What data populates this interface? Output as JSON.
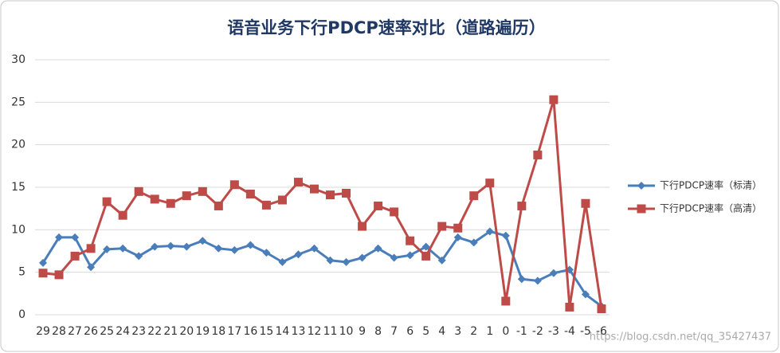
{
  "chart_data": {
    "type": "line",
    "title": "语音业务下行PDCP速率对比（道路遍历）",
    "categories": [
      "29",
      "28",
      "27",
      "26",
      "25",
      "24",
      "23",
      "22",
      "21",
      "20",
      "19",
      "18",
      "17",
      "16",
      "15",
      "14",
      "13",
      "12",
      "11",
      "10",
      "9",
      "8",
      "7",
      "6",
      "5",
      "4",
      "3",
      "2",
      "1",
      "0",
      "-1",
      "-2",
      "-3",
      "-4",
      "-5",
      "-6"
    ],
    "series": [
      {
        "name": "下行PDCP速率（标清）",
        "color": "#4a7ebb",
        "marker": "diamond",
        "values": [
          6.1,
          9.1,
          9.1,
          5.6,
          7.7,
          7.8,
          6.9,
          8.0,
          8.1,
          8.0,
          8.7,
          7.8,
          7.6,
          8.2,
          7.3,
          6.2,
          7.1,
          7.8,
          6.4,
          6.2,
          6.7,
          7.8,
          6.7,
          7.0,
          8.0,
          6.4,
          9.1,
          8.5,
          9.8,
          9.3,
          4.2,
          4.0,
          4.9,
          5.3,
          2.4,
          1.0
        ]
      },
      {
        "name": "下行PDCP速率（高清）",
        "color": "#be4b48",
        "marker": "square",
        "values": [
          4.9,
          4.7,
          6.9,
          7.8,
          13.3,
          11.7,
          14.5,
          13.6,
          13.1,
          14.0,
          14.5,
          12.8,
          15.3,
          14.2,
          12.9,
          13.5,
          15.6,
          14.8,
          14.1,
          14.3,
          10.4,
          12.8,
          12.1,
          8.7,
          6.9,
          10.4,
          10.2,
          14.0,
          15.5,
          1.6,
          12.8,
          18.8,
          25.3,
          0.9,
          13.1,
          0.7
        ]
      }
    ],
    "ylim": [
      0,
      30
    ],
    "yticks": [
      0,
      5,
      10,
      15,
      20,
      25,
      30
    ],
    "grid": true,
    "legend": "right",
    "watermark": "https://blog.csdn.net/qq_35427437"
  }
}
